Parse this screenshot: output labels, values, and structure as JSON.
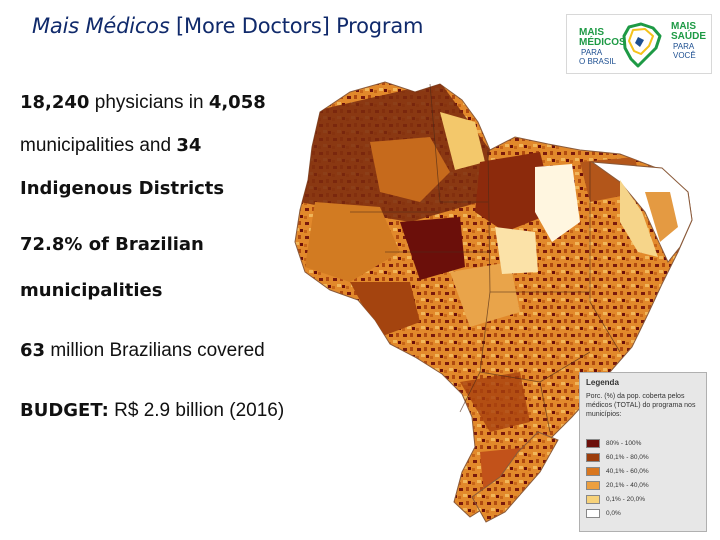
{
  "title": {
    "italic_part": "Mais Médicos",
    "rest": " [More Doctors] Program"
  },
  "logo": {
    "left_line1": "MAIS",
    "left_line2": "MÉDICOS",
    "left_line3": "PARA",
    "left_line4": "O BRASIL",
    "right_line1": "MAIS",
    "right_line2": "SAÚDE",
    "right_line3": "PARA",
    "right_line4": "VOCÊ"
  },
  "stats": {
    "line1_num1": "18,240",
    "line1_text": " physicians in ",
    "line1_num2": "4,058",
    "line2_text": "municipalities and ",
    "line2_num": "34",
    "line3": "Indigenous Districts",
    "line4": "72.8% of Brazilian",
    "line5": "municipalities",
    "line6_num": "63",
    "line6_text": " million Brazilians covered",
    "line7_label": "BUDGET:",
    "line7_text": " R$ 2.9 billion (2016)"
  },
  "legend": {
    "title": "Legenda",
    "description": "Porc. (%) da pop. coberta pelos médicos (TOTAL) do programa nos municípios:",
    "items": [
      {
        "label": "80% - 100%",
        "color": "#6b0f0a"
      },
      {
        "label": "60,1% - 80,0%",
        "color": "#9c3d0c"
      },
      {
        "label": "40,1% - 60,0%",
        "color": "#d9771f"
      },
      {
        "label": "20,1% - 40,0%",
        "color": "#eda040"
      },
      {
        "label": "0,1% - 20,0%",
        "color": "#f7d27a"
      },
      {
        "label": "0,0%",
        "color": "#ffffff"
      }
    ]
  },
  "colors": {
    "title": "#102a6b",
    "logo_green": "#1e9a45",
    "logo_blue": "#1d4f91",
    "logo_yellow": "#f4c21b"
  }
}
